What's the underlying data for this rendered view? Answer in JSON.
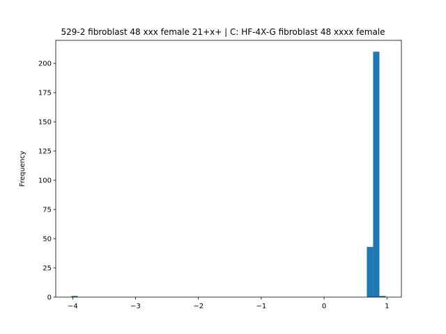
{
  "chart_data": {
    "type": "histogram",
    "title": "529-2 fibroblast 48 xxx female 21+x+ | C: HF-4X-G fibroblast 48 xxxx female",
    "ylabel": "Frequency",
    "color": "#1f77b4",
    "bins": [
      -4.02,
      -3.92,
      -3.82,
      -3.72,
      -3.62,
      -3.52,
      -3.42,
      -3.32,
      -3.22,
      -3.12,
      -3.02,
      -2.92,
      -2.82,
      -2.72,
      -2.62,
      -2.52,
      -2.42,
      -2.32,
      -2.22,
      -2.12,
      -2.02,
      -1.92,
      -1.82,
      -1.72,
      -1.62,
      -1.52,
      -1.42,
      -1.32,
      -1.22,
      -1.12,
      -1.02,
      -0.92,
      -0.82,
      -0.72,
      -0.62,
      -0.52,
      -0.42,
      -0.32,
      -0.22,
      -0.12,
      -0.02,
      0.08,
      0.18,
      0.28,
      0.38,
      0.48,
      0.58,
      0.68,
      0.78,
      0.88,
      0.98
    ],
    "values": [
      1,
      0,
      0,
      0,
      0,
      0,
      0,
      0,
      0,
      0,
      0,
      0,
      0,
      0,
      0,
      0,
      0,
      0,
      0,
      0,
      0,
      0,
      0,
      0,
      0,
      0,
      0,
      0,
      0,
      0,
      0,
      0,
      0,
      0,
      0,
      0,
      0,
      0,
      0,
      0,
      0,
      0,
      0,
      0,
      0,
      0,
      0,
      43,
      210,
      1
    ],
    "xlim": [
      -4.27,
      1.23
    ],
    "ylim": [
      0,
      219.7
    ],
    "xticks": [
      {
        "value": -4,
        "label": "−4"
      },
      {
        "value": -3,
        "label": "−3"
      },
      {
        "value": -2,
        "label": "−2"
      },
      {
        "value": -1,
        "label": "−1"
      },
      0,
      1
    ],
    "yticks": [
      0,
      25,
      50,
      75,
      100,
      125,
      150,
      175,
      200
    ]
  }
}
